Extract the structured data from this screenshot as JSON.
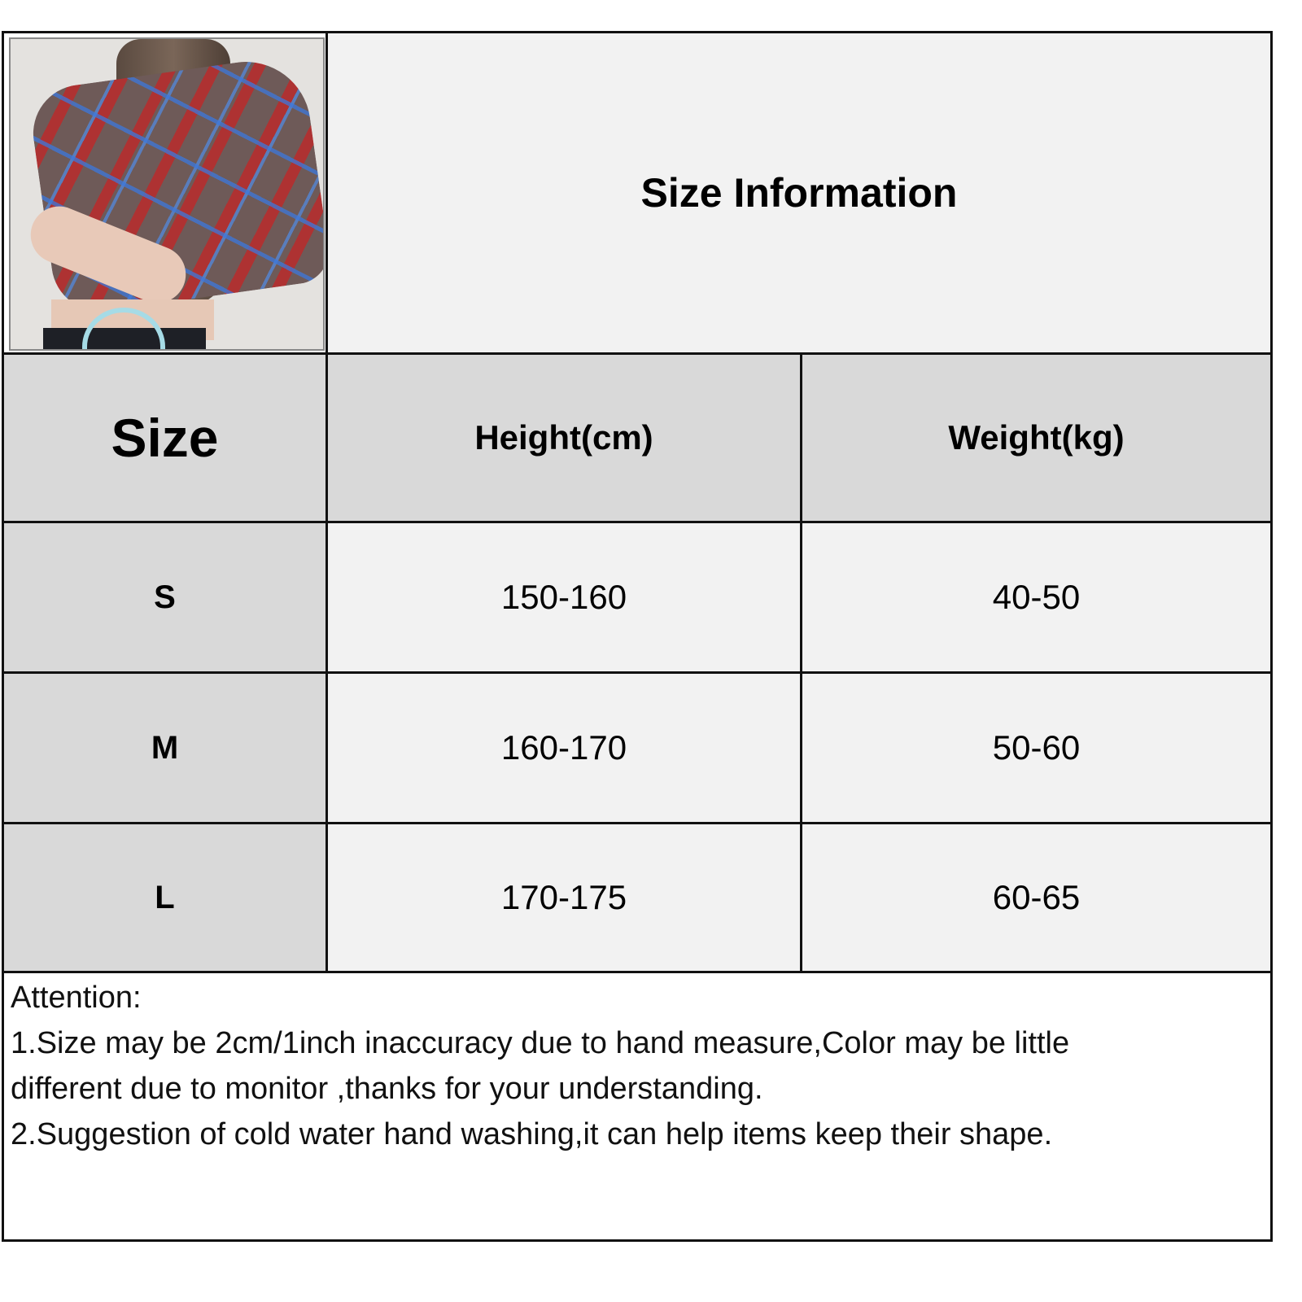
{
  "title": "Size Information",
  "photo": {
    "icon": "product-photo-plaid-mesh-top",
    "alt_colors": [
      "#7a2a2a",
      "#4a7fd6",
      "#6e5a58"
    ]
  },
  "headers": {
    "size": "Size",
    "height": "Height(cm)",
    "weight": "Weight(kg)"
  },
  "rows": [
    {
      "size": "S",
      "height": "150-160",
      "weight": "40-50"
    },
    {
      "size": "M",
      "height": "160-170",
      "weight": "50-60"
    },
    {
      "size": "L",
      "height": "170-175",
      "weight": "60-65"
    }
  ],
  "notes": {
    "heading": "Attention:",
    "line1": "1.Size may be 2cm/1inch inaccuracy due to hand measure,Color may be little",
    "line2": "different due to monitor ,thanks for your understanding.",
    "line3": "2.Suggestion of cold water hand washing,it can help items keep their shape."
  },
  "colors": {
    "header_bg": "#d9d9d9",
    "cell_bg": "#f2f2f2",
    "border": "#111111"
  }
}
